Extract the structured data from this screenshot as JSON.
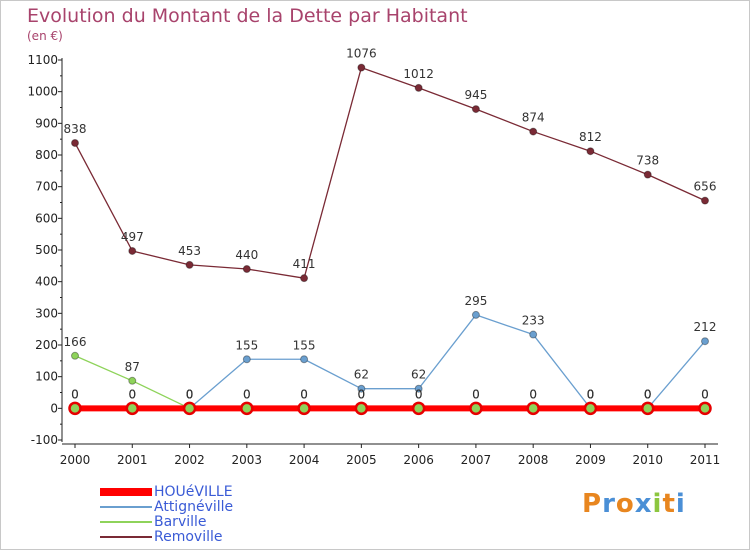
{
  "title": "Evolution du Montant de la Dette par Habitant",
  "subtitle": "(en €)",
  "brand": {
    "letters": [
      "P",
      "r",
      "o",
      "x",
      "i",
      "t",
      "i"
    ],
    "colors": [
      "#e8861f",
      "#4a8fd6",
      "#e8861f",
      "#4a8fd6",
      "#8cc63f",
      "#e8861f",
      "#4a8fd6"
    ]
  },
  "chart_data": {
    "type": "line",
    "title": "Evolution du Montant de la Dette par Habitant",
    "subtitle": "(en €)",
    "xlabel": "",
    "ylabel": "",
    "x": [
      "2000",
      "2001",
      "2002",
      "2003",
      "2004",
      "2005",
      "2006",
      "2007",
      "2008",
      "2009",
      "2010",
      "2011"
    ],
    "ylim": [
      -100,
      1100
    ],
    "yticks": [
      -100,
      0,
      100,
      200,
      300,
      400,
      500,
      600,
      700,
      800,
      900,
      1000,
      1100
    ],
    "grid": false,
    "legend_position": "bottom-left",
    "series": [
      {
        "name": "HOUéVILLE",
        "color": "#ff0000",
        "values": [
          0,
          0,
          0,
          0,
          0,
          0,
          0,
          0,
          0,
          0,
          0,
          0
        ],
        "labels": [
          "0",
          "0",
          "0",
          "0",
          "0",
          "0",
          "0",
          "0",
          "0",
          "0",
          "0",
          "0"
        ]
      },
      {
        "name": "Attignéville",
        "color": "#6a9fcf",
        "values": [
          0,
          0,
          0,
          155,
          155,
          62,
          62,
          295,
          233,
          0,
          0,
          212
        ],
        "labels": [
          "0",
          "0",
          "0",
          "155",
          "155",
          "62",
          "62",
          "295",
          "233",
          "0",
          "0",
          "212"
        ]
      },
      {
        "name": "Barville",
        "color": "#8ed35a",
        "values": [
          166,
          87,
          0,
          0,
          0,
          0,
          0,
          0,
          0,
          0,
          0,
          0
        ],
        "labels": [
          "166",
          "87",
          "0",
          "0",
          "0",
          "0",
          "0",
          "0",
          "0",
          "0",
          "0",
          "0"
        ]
      },
      {
        "name": "Removille",
        "color": "#7a2a35",
        "values": [
          838,
          497,
          453,
          440,
          411,
          1076,
          1012,
          945,
          874,
          812,
          738,
          656
        ],
        "labels": [
          "838",
          "497",
          "453",
          "440",
          "411",
          "1076",
          "1012",
          "945",
          "874",
          "812",
          "738",
          "656"
        ]
      }
    ]
  }
}
